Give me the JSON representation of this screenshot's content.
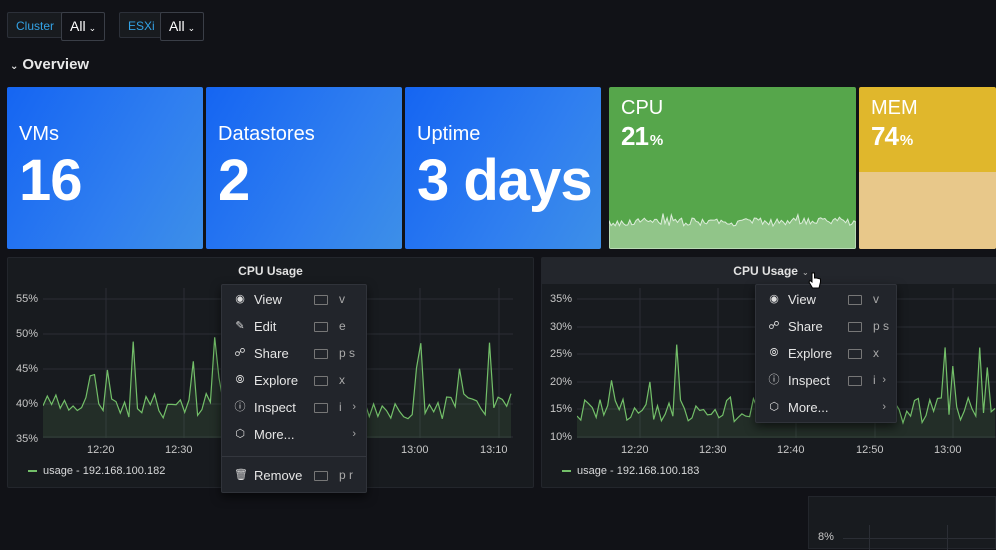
{
  "vars": [
    {
      "label": "Cluster",
      "value": "All"
    },
    {
      "label": "ESXi",
      "value": "All"
    }
  ],
  "row": {
    "title": "Overview"
  },
  "stats": [
    {
      "name": "VMs",
      "value": "16"
    },
    {
      "name": "Datastores",
      "value": "2"
    },
    {
      "name": "Uptime",
      "value": "3 days"
    },
    {
      "name": "CPU",
      "value": "21",
      "unit": "%",
      "color": "#56a64b"
    },
    {
      "name": "MEM",
      "value": "74",
      "unit": "%",
      "color": "#e0b72c"
    }
  ],
  "panels": [
    {
      "title": "CPU Usage",
      "yticks": [
        "55%",
        "50%",
        "45%",
        "40%",
        "35%"
      ],
      "xticks": [
        "12:20",
        "12:30",
        "13:00",
        "13:10"
      ],
      "legend": "usage - 192.168.100.182"
    },
    {
      "title": "CPU Usage",
      "yticks": [
        "35%",
        "30%",
        "25%",
        "20%",
        "15%",
        "10%"
      ],
      "xticks": [
        "12:20",
        "12:30",
        "12:40",
        "12:50",
        "13:00"
      ],
      "legend": "usage - 192.168.100.183"
    }
  ],
  "extra_panel": {
    "ytick": "8%"
  },
  "menu1": {
    "items": [
      {
        "label": "View",
        "shortcut": "v",
        "icon": "eye-icon"
      },
      {
        "label": "Edit",
        "shortcut": "e",
        "icon": "edit-icon"
      },
      {
        "label": "Share",
        "shortcut": "p s",
        "icon": "share-icon"
      },
      {
        "label": "Explore",
        "shortcut": "x",
        "icon": "compass-icon"
      },
      {
        "label": "Inspect",
        "shortcut": "i",
        "icon": "info-icon"
      },
      {
        "label": "More...",
        "shortcut": "",
        "icon": "cube-icon"
      }
    ],
    "remove": {
      "label": "Remove",
      "shortcut": "p r",
      "icon": "trash-icon"
    }
  },
  "menu2": {
    "items": [
      {
        "label": "View",
        "shortcut": "v",
        "icon": "eye-icon"
      },
      {
        "label": "Share",
        "shortcut": "p s",
        "icon": "share-icon"
      },
      {
        "label": "Explore",
        "shortcut": "x",
        "icon": "compass-icon"
      },
      {
        "label": "Inspect",
        "shortcut": "i",
        "icon": "info-icon"
      },
      {
        "label": "More...",
        "shortcut": "",
        "icon": "cube-icon"
      }
    ]
  },
  "colors": {
    "series": "#73bf69",
    "accent": "#33a2e5"
  }
}
